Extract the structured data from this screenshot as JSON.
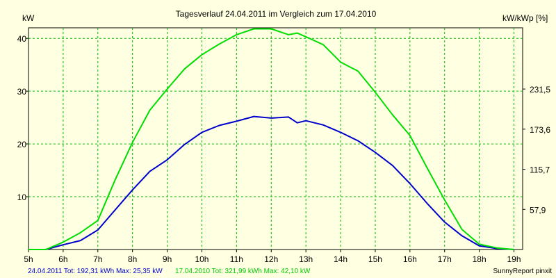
{
  "chart_data": {
    "type": "line",
    "title": "Tagesverlauf 24.04.2011 im Vergleich zum 17.04.2010",
    "ylabel_left": "kW",
    "ylabel_right": "kW/kWp [%]",
    "xlim": [
      5,
      19.25
    ],
    "ylim": [
      0,
      42
    ],
    "x_ticks": [
      {
        "value": 5,
        "label": "5h"
      },
      {
        "value": 6,
        "label": "6h"
      },
      {
        "value": 7,
        "label": "7h"
      },
      {
        "value": 8,
        "label": "8h"
      },
      {
        "value": 9,
        "label": "9h"
      },
      {
        "value": 10,
        "label": "10h"
      },
      {
        "value": 11,
        "label": "11h"
      },
      {
        "value": 12,
        "label": "12h"
      },
      {
        "value": 13,
        "label": "13h"
      },
      {
        "value": 14,
        "label": "14h"
      },
      {
        "value": 15,
        "label": "15h"
      },
      {
        "value": 16,
        "label": "16h"
      },
      {
        "value": 17,
        "label": "17h"
      },
      {
        "value": 18,
        "label": "18h"
      },
      {
        "value": 19,
        "label": "19h"
      }
    ],
    "y_ticks_left": [
      {
        "value": 10,
        "label": "10"
      },
      {
        "value": 20,
        "label": "20"
      },
      {
        "value": 30,
        "label": "30"
      },
      {
        "value": 40,
        "label": "40"
      }
    ],
    "y_ticks_right": [
      {
        "value": 7.6,
        "label": "57,9"
      },
      {
        "value": 15.2,
        "label": "115,7"
      },
      {
        "value": 22.8,
        "label": "173,6"
      },
      {
        "value": 30.4,
        "label": "231,5"
      }
    ],
    "grid": true,
    "series": [
      {
        "name": "24.04.2011",
        "color": "#0000cc",
        "x": [
          5.0,
          5.5,
          6.0,
          6.5,
          7.0,
          7.5,
          8.0,
          8.5,
          9.0,
          9.5,
          10.0,
          10.5,
          11.0,
          11.5,
          12.0,
          12.5,
          12.75,
          13.0,
          13.5,
          14.0,
          14.5,
          15.0,
          15.5,
          16.0,
          16.5,
          17.0,
          17.5,
          18.0,
          18.5,
          19.0
        ],
        "values": [
          0.0,
          0.0,
          0.9,
          1.7,
          3.7,
          7.5,
          11.3,
          14.8,
          17.0,
          19.9,
          22.2,
          23.5,
          24.3,
          25.2,
          24.9,
          25.1,
          24.0,
          24.4,
          23.6,
          22.2,
          20.6,
          18.4,
          15.9,
          12.5,
          8.7,
          5.2,
          2.6,
          0.7,
          0.2,
          0.0
        ]
      },
      {
        "name": "17.04.2010",
        "color": "#00dd00",
        "x": [
          5.0,
          5.5,
          6.0,
          6.5,
          7.0,
          7.5,
          8.0,
          8.5,
          9.0,
          9.5,
          10.0,
          10.5,
          11.0,
          11.5,
          12.0,
          12.5,
          12.75,
          13.0,
          13.5,
          14.0,
          14.5,
          15.0,
          15.5,
          16.0,
          16.5,
          17.0,
          17.5,
          18.0,
          18.5,
          19.0
        ],
        "values": [
          0.0,
          0.0,
          1.4,
          3.2,
          5.5,
          13.2,
          20.3,
          26.4,
          30.4,
          34.2,
          36.9,
          38.9,
          40.7,
          41.8,
          41.8,
          40.7,
          41.0,
          40.3,
          38.8,
          35.5,
          33.8,
          29.8,
          25.5,
          21.6,
          15.4,
          9.4,
          3.8,
          1.0,
          0.3,
          0.0
        ]
      }
    ]
  },
  "footer": {
    "series1_info": "24.04.2011 Tot: 192,31 kWh Max: 25,35 kW",
    "series2_info": "17.04.2010 Tot: 321,99 kWh Max: 42,10 kW",
    "credit": "SunnyReport pinxit"
  }
}
